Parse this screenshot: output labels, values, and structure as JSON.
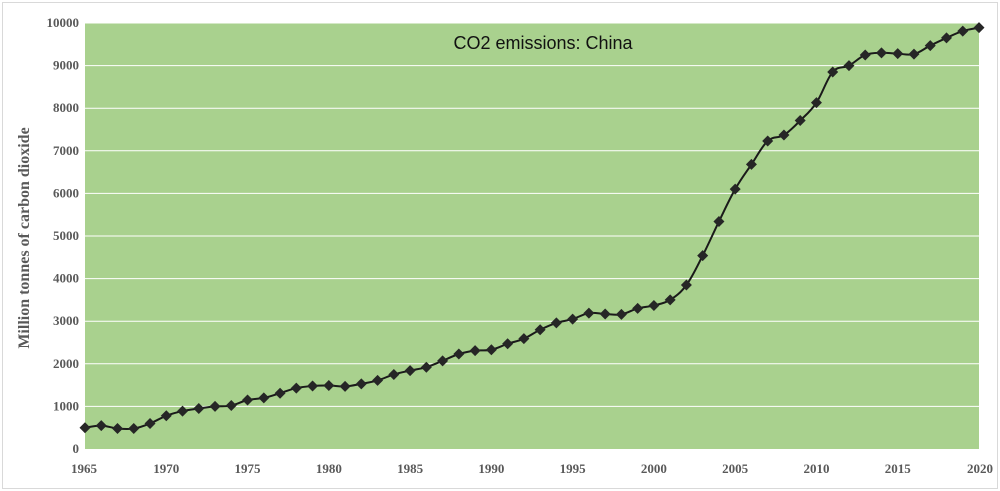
{
  "chart_data": {
    "type": "line",
    "title": "CO2 emissions: China",
    "xlabel": "",
    "ylabel": "Million tonnes of carbon dioxide",
    "xlim": [
      1965,
      2020
    ],
    "ylim": [
      0,
      10000
    ],
    "x_ticks": [
      1965,
      1970,
      1975,
      1980,
      1985,
      1990,
      1995,
      2000,
      2005,
      2010,
      2015,
      2020
    ],
    "y_ticks": [
      0,
      1000,
      2000,
      3000,
      4000,
      5000,
      6000,
      7000,
      8000,
      9000,
      10000
    ],
    "grid": true,
    "legend": "none",
    "colors": {
      "plot_background": "#a9d18e",
      "line": "#1a1a1a",
      "marker": "#262626",
      "grid": "#ffffff"
    },
    "series": [
      {
        "name": "CO2 emissions: China",
        "x": [
          1965,
          1966,
          1967,
          1968,
          1969,
          1970,
          1971,
          1972,
          1973,
          1974,
          1975,
          1976,
          1977,
          1978,
          1979,
          1980,
          1981,
          1982,
          1983,
          1984,
          1985,
          1986,
          1987,
          1988,
          1989,
          1990,
          1991,
          1992,
          1993,
          1994,
          1995,
          1996,
          1997,
          1998,
          1999,
          2000,
          2001,
          2002,
          2003,
          2004,
          2005,
          2006,
          2007,
          2008,
          2009,
          2010,
          2011,
          2012,
          2013,
          2014,
          2015,
          2016,
          2017,
          2018,
          2019,
          2020
        ],
        "values": [
          500,
          550,
          480,
          480,
          600,
          780,
          890,
          950,
          1000,
          1020,
          1150,
          1200,
          1310,
          1430,
          1480,
          1490,
          1470,
          1530,
          1610,
          1750,
          1840,
          1920,
          2070,
          2230,
          2310,
          2330,
          2470,
          2590,
          2800,
          2960,
          3050,
          3190,
          3170,
          3160,
          3300,
          3370,
          3500,
          3850,
          4540,
          5340,
          6100,
          6680,
          7230,
          7370,
          7710,
          8130,
          8850,
          9000,
          9250,
          9300,
          9280,
          9270,
          9470,
          9650,
          9810,
          9890
        ]
      }
    ]
  }
}
